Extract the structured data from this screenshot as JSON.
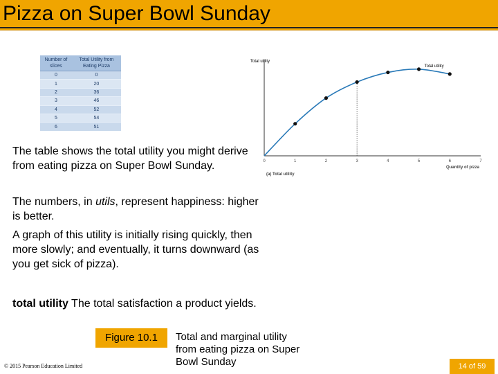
{
  "slide": {
    "title": "Pizza on Super Bowl Sunday",
    "paragraphs": [
      "The table shows the total utility you might derive from eating pizza on Super Bowl Sunday.",
      "A graph of this utility is initially rising quickly, then more slowly; and eventually, it turns downward (as you get sick of pizza)."
    ],
    "p2": {
      "pre": "The numbers, in ",
      "em": "utils",
      "post": ", represent happiness: higher is better."
    },
    "definition": {
      "term": "total utility",
      "text": " The total satisfaction a product yields."
    },
    "figure_label": "Figure 10.1",
    "caption": "Total and marginal utility from eating pizza on Super Bowl Sunday",
    "copyright": "© 2015 Pearson Education Limited",
    "page": "14 of 59"
  },
  "table": {
    "headers": [
      "Number of slices",
      "Total Utility from Eating Pizza"
    ],
    "rows": [
      [
        "0",
        "0"
      ],
      [
        "1",
        "20"
      ],
      [
        "2",
        "36"
      ],
      [
        "3",
        "46"
      ],
      [
        "4",
        "52"
      ],
      [
        "5",
        "54"
      ],
      [
        "6",
        "51"
      ]
    ]
  },
  "chart_data": {
    "type": "line",
    "x": [
      0,
      1,
      2,
      3,
      4,
      5,
      6
    ],
    "series": [
      {
        "name": "Total utility",
        "values": [
          0,
          20,
          36,
          46,
          52,
          54,
          51
        ]
      }
    ],
    "ylabel": "Total utility",
    "xlabel": "Quantity of pizza",
    "xticks": [
      "0",
      "1",
      "2",
      "3",
      "4",
      "5",
      "6",
      "7"
    ],
    "xlim": [
      0,
      7
    ],
    "ylim": [
      0,
      60
    ],
    "panel_label": "(a) Total utility",
    "curve_label": "Total utility",
    "guide_at_x": 3,
    "colors": {
      "curve": "#2a7ab8",
      "points": "#111111",
      "guide": "#555555"
    }
  },
  "colors": {
    "accent": "#f0a500",
    "table_bg": "#c9d9ec",
    "table_text": "#1d3b66"
  }
}
